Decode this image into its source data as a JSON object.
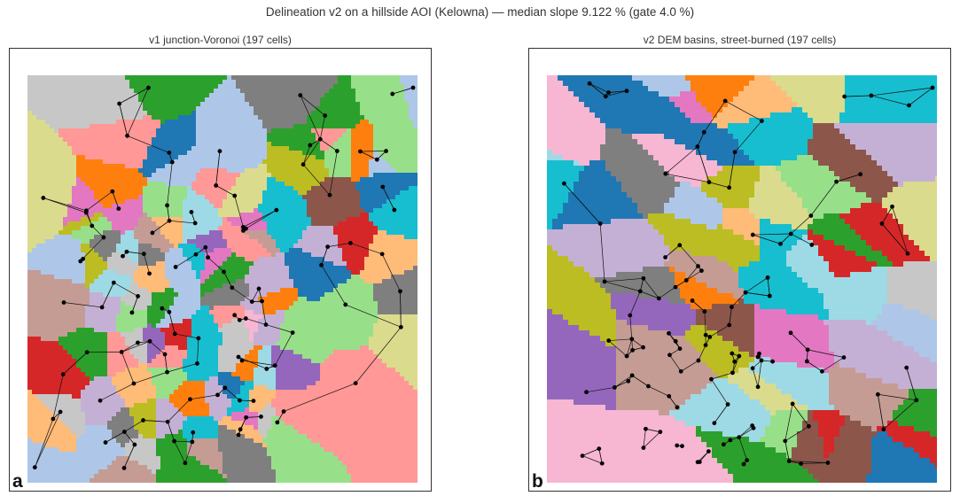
{
  "figure": {
    "suptitle": "Delineation v2 on a hillside AOI (Kelowna) — median slope 9.122 % (gate 4.0 %)"
  },
  "panels": [
    {
      "id": "a",
      "title": "v1 junction-Voronoi (197 cells)",
      "letter": "a",
      "cell_count": 197,
      "method": "voronoi"
    },
    {
      "id": "b",
      "title": "v2 DEM basins, street-burned (197 cells)",
      "letter": "b",
      "cell_count": 197,
      "method": "basins"
    }
  ],
  "palette": [
    "#aec7e8",
    "#ffbb78",
    "#98df8a",
    "#ff9896",
    "#c5b0d5",
    "#c49c94",
    "#f7b6d2",
    "#c7c7c7",
    "#dbdb8d",
    "#9edae5",
    "#1f77b4",
    "#ff7f0e",
    "#2ca02c",
    "#d62728",
    "#9467bd",
    "#8c564b",
    "#e377c2",
    "#7f7f7f",
    "#bcbd22",
    "#17becf"
  ],
  "colors": {
    "network_line": "#111111",
    "node": "#000000",
    "frame": "#333333"
  }
}
